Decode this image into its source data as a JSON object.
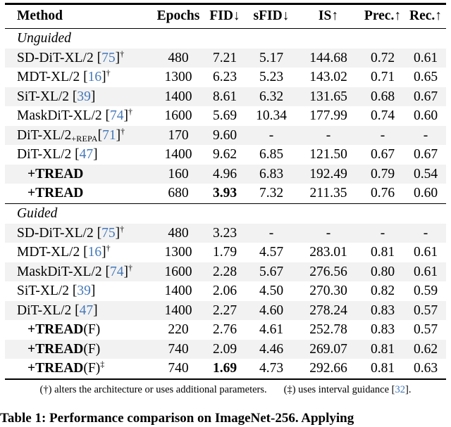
{
  "colors": {
    "citation_blue": "#4377b8",
    "row_shade": "#f2f2f2",
    "text": "#000000",
    "background": "#ffffff"
  },
  "table": {
    "columns": [
      "Method",
      "Epochs",
      "FID↓",
      "sFID↓",
      "IS↑",
      "Prec.↑",
      "Rec.↑"
    ],
    "sections": [
      {
        "label": "Unguided",
        "rows": [
          {
            "method": {
              "text": "SD-DiT-XL/2",
              "cite": "75",
              "sup": "†"
            },
            "values": [
              "480",
              "7.21",
              "5.17",
              "144.68",
              "0.72",
              "0.61"
            ]
          },
          {
            "method": {
              "text": "MDT-XL/2",
              "cite": "16",
              "sup": "†"
            },
            "values": [
              "1300",
              "6.23",
              "5.23",
              "143.02",
              "0.71",
              "0.65"
            ]
          },
          {
            "method": {
              "text": "SiT-XL/2",
              "cite": "39"
            },
            "values": [
              "1400",
              "8.61",
              "6.32",
              "131.65",
              "0.68",
              "0.67"
            ]
          },
          {
            "method": {
              "text": "MaskDiT-XL/2",
              "cite": "74",
              "sup": "†"
            },
            "values": [
              "1600",
              "5.69",
              "10.34",
              "177.99",
              "0.74",
              "0.60"
            ]
          },
          {
            "method": {
              "text": "DiT-XL/2",
              "sub": "+REPA",
              "cite": "71",
              "sup": "†",
              "nospace": true
            },
            "values": [
              "170",
              "9.60",
              "-",
              "-",
              "-",
              "-"
            ]
          },
          {
            "method": {
              "text": "DiT-XL/2",
              "cite": "47"
            },
            "values": [
              "1400",
              "9.62",
              "6.85",
              "121.50",
              "0.67",
              "0.67"
            ]
          },
          {
            "method": {
              "bold": "+TREAD",
              "indent": true
            },
            "values": [
              "160",
              "4.96",
              "6.83",
              "192.49",
              "0.79",
              "0.54"
            ]
          },
          {
            "method": {
              "bold": "+TREAD",
              "indent": true
            },
            "values": [
              "680",
              "3.93",
              "7.32",
              "211.35",
              "0.76",
              "0.60"
            ],
            "bold_value": 1
          }
        ]
      },
      {
        "label": "Guided",
        "rows": [
          {
            "method": {
              "text": "SD-DiT-XL/2",
              "cite": "75",
              "sup": "†"
            },
            "values": [
              "480",
              "3.23",
              "-",
              "-",
              "-",
              "-"
            ]
          },
          {
            "method": {
              "text": "MDT-XL/2",
              "cite": "16",
              "sup": "†"
            },
            "values": [
              "1300",
              "1.79",
              "4.57",
              "283.01",
              "0.81",
              "0.61"
            ]
          },
          {
            "method": {
              "text": "MaskDiT-XL/2",
              "cite": "74",
              "sup": "†"
            },
            "values": [
              "1600",
              "2.28",
              "5.67",
              "276.56",
              "0.80",
              "0.61"
            ]
          },
          {
            "method": {
              "text": "SiT-XL/2",
              "cite": "39"
            },
            "values": [
              "1400",
              "2.06",
              "4.50",
              "270.30",
              "0.82",
              "0.59"
            ]
          },
          {
            "method": {
              "text": "DiT-XL/2",
              "cite": "47"
            },
            "values": [
              "1400",
              "2.27",
              "4.60",
              "278.24",
              "0.83",
              "0.57"
            ]
          },
          {
            "method": {
              "bold": "+TREAD",
              "plain": "(F)",
              "indent": true
            },
            "values": [
              "220",
              "2.76",
              "4.61",
              "252.78",
              "0.83",
              "0.57"
            ]
          },
          {
            "method": {
              "bold": "+TREAD",
              "plain": "(F)",
              "indent": true
            },
            "values": [
              "740",
              "2.09",
              "4.46",
              "269.07",
              "0.81",
              "0.62"
            ]
          },
          {
            "method": {
              "bold": "+TREAD",
              "plain": "(F)",
              "sup": "‡",
              "indent": true
            },
            "values": [
              "740",
              "1.69",
              "4.73",
              "292.66",
              "0.81",
              "0.63"
            ],
            "bold_value": 1
          }
        ]
      }
    ]
  },
  "footnote": {
    "part1": "(†) alters the architecture or uses additional parameters.",
    "part2_prefix": "(‡) uses interval guidance [",
    "part2_cite": "32",
    "part2_suffix": "]."
  },
  "caption": {
    "label": "Table 1:",
    "text": "Performance comparison on ImageNet-256. Applying"
  }
}
